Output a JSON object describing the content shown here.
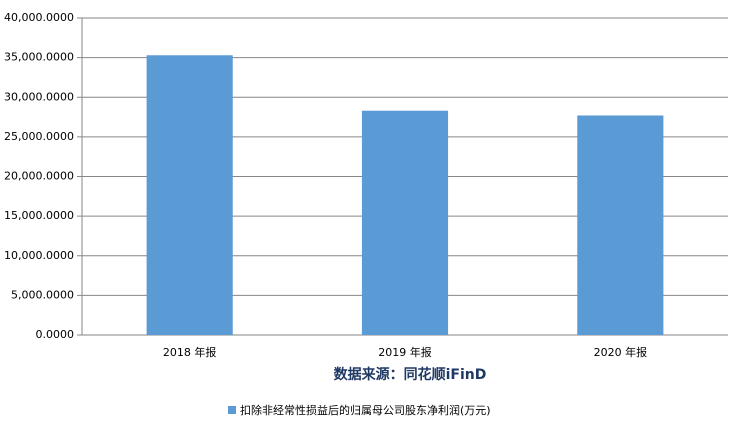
{
  "chart_data": {
    "type": "bar",
    "categories": [
      "2018 年报",
      "2019 年报",
      "2020 年报"
    ],
    "series": [
      {
        "name": "扣除非经常性损益后的归属母公司股东净利润(万元)",
        "color": "#5b9bd5",
        "values": [
          35300,
          28300,
          27700
        ]
      }
    ],
    "ylim": [
      0,
      40000
    ],
    "yticks": [
      {
        "value": 0,
        "label": "0.0000"
      },
      {
        "value": 5000,
        "label": "5,000.0000"
      },
      {
        "value": 10000,
        "label": "10,000.0000"
      },
      {
        "value": 15000,
        "label": "15,000.0000"
      },
      {
        "value": 20000,
        "label": "20,000.0000"
      },
      {
        "value": 25000,
        "label": "25,000.0000"
      },
      {
        "value": 30000,
        "label": "30,000.0000"
      },
      {
        "value": 35000,
        "label": "35,000.0000"
      },
      {
        "value": 40000,
        "label": "40,000.0000"
      }
    ],
    "grid": true,
    "source": "数据来源：同花顺iFinD",
    "legend": "bottom"
  }
}
